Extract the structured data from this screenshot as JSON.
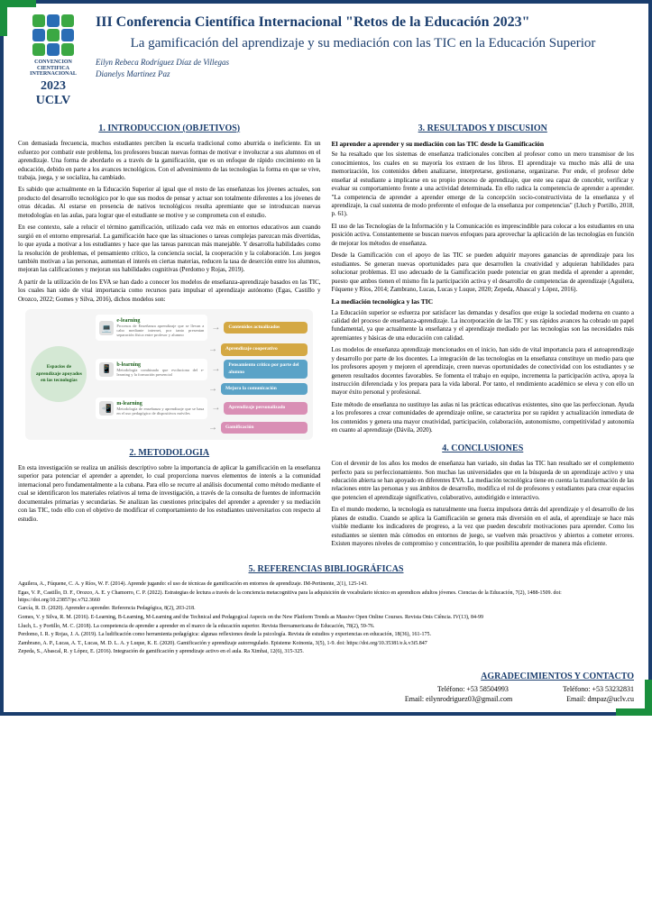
{
  "logo": {
    "line1": "CONVENCION",
    "line2": "CIENTIFICA",
    "line3": "INTERNACIONAL",
    "year": "2023",
    "uclv": "UCLV"
  },
  "conference_title": "III Conferencia Científica Internacional \"Retos de la Educación 2023\"",
  "main_title": "La gamificación del aprendizaje y su mediación con las TIC en la Educación Superior",
  "authors": {
    "a1": "Eilyn Rebeca Rodríguez Díaz de Villegas",
    "a2": "Dianelys Martinez Paz"
  },
  "sections": {
    "intro_title": "1. INTRODUCCION (OBJETIVOS)",
    "intro_p1": "Con demasiada frecuencia, muchos estudiantes perciben la escuela tradicional como aburrida o ineficiente. En un esfuerzo por combatir este problema, los profesores buscan nuevas formas de motivar e involucrar a sus alumnos en el aprendizaje. Una forma de abordarlo es a través de la gamificación, que es un enfoque de rápido crecimiento en la educación, debido en parte a los avances tecnológicos. Con el advenimiento de las tecnologías la forma en que se vive, trabaja, juega, y se socializa, ha cambiado.",
    "intro_p2": "Es sabido que actualmente en la Educación Superior al igual que el resto de las enseñanzas los jóvenes actuales, son producto del desarrollo tecnológico por lo que sus modos de pensar y actuar son totalmente diferentes a los jóvenes de otras décadas. Al estarse en presencia de nativos tecnológicos resulta apremiante que se introduzcan nuevas metodologías en las aulas, para lograr que el estudiante se motive y se comprometa con el estudio.",
    "intro_p3": "En ese contexto, sale a relucir el término gamificación, utilizado cada vez más en entornos educativos aun cuando surgió en el entorno empresarial. La gamificación hace que las situaciones o tareas complejas parezcan más divertidas, lo que ayuda a motivar a los estudiantes y hace que las tareas parezcan más manejable. Y desarrolla habilidades como la resolución de problemas, el pensamiento crítico, la conciencia social, la cooperación y la colaboración. Los juegos también motivan a las personas, aumentan el interés en ciertas materias, reducen la tasa de deserción entre los alumnos, mejoran las calificaciones y mejoran sus habilidades cognitivas (Perdomo y Rojas, 2019).",
    "intro_p4": "A partir de la utilización de los EVA se han dado a conocer los modelos de enseñanza-aprendizaje basados en las TIC, los cuales han sido de vital importancia como recursos para impulsar el aprendizaje autónomo (Egas, Castillo y Orozco, 2022; Gomes y Silva, 2016), dichos modelos son:",
    "method_title": "2. METODOLOGIA",
    "method_p1": "En esta investigación se realiza un análisis descriptivo sobre la importancia de aplicar la gamificación en la enseñanza superior para potenciar el aprender a aprender, lo cual proporciona nuevos elementos de interés a la comunidad internacional pero fundamentalmente a la cubana. Para ello se recurre al análisis documental como método mediante el cual se identificaron los materiales relativos al tema de investigación, a través de la consulta de fuentes de información documentales primarias y secundarias. Se analizan las cuestiones principales del aprender a aprender y su mediación con las TIC, todo ello con el objetivo de modificar el comportamiento de los estudiantes universitarios con respecto al estudio.",
    "results_title": "3. RESULTADOS Y DISCUSION",
    "results_sub1": "El aprender a aprender y su mediación con las TIC desde la Gamificación",
    "results_p1": "Se ha resaltado que los sistemas de enseñanza tradicionales conciben al profesor como un mero transmisor de los conocimientos, los cuales en su mayoría los extraen de los libros. El aprendizaje va mucho más allá de una memorización, los contenidos deben analizarse, interpretarse, gestionarse, organizarse. Por ende, el profesor debe enseñar al estudiante a implicarse en su propio proceso de aprendizaje, que este sea capaz de concebir, verificar y evaluar su comportamiento frente a una actividad determinada. En ello radica la competencia de aprender a aprender. \"La competencia de aprender a aprender emerge de la concepción socio-constructivista de la enseñanza y el aprendizaje, la cual sustenta de modo preferente el enfoque de la enseñanza por competencias\" (Lluch y Portillo, 2018, p. 61).",
    "results_p2": "El uso de las Tecnologías de la Información y la Comunicación es imprescindible para colocar a los estudiantes en una posición activa. Constantemente se buscan nuevos enfoques para aprovechar la aplicación de las tecnologías en función de mejorar los métodos de enseñanza.",
    "results_p3": "Desde la Gamificación con el apoyo de las TIC se pueden adquirir mayores ganancias de aprendizaje para los estudiantes. Se generan nuevas oportunidades para que desarrollen la creatividad y adquieran habilidades para solucionar problemas. El uso adecuado de la Gamificación puede potenciar en gran medida el aprender a aprender, puesto que ambos tienen el mismo fin la participación activa y el desarrollo de competencias de aprendizaje (Aguilera, Fúquene y Ríos, 2014; Zambrano, Lucas, Lucas y Luque, 2020; Zepeda, Abascal y López, 2016).",
    "results_sub2": "La mediación tecnológica y las TIC",
    "results_p4": "La Educación superior se esfuerza por satisfacer las demandas y desafíos que exige la sociedad moderna en cuanto a calidad del proceso de enseñanza-aprendizaje. La incorporación de las TIC y sus rápidos avances ha cobrado un papel fundamental, ya que actualmente la enseñanza y el aprendizaje mediado por las tecnologías son las necesidades más apremiantes y básicas de una educación con calidad.",
    "results_p5": "Los modelos de enseñanza aprendizaje mencionados en el inicio, han sido de vital importancia para el autoaprendizaje y desarrollo por parte de los docentes. La integración de las tecnologías en la enseñanza constituye un medio para que los profesores apoyen y mejoren el aprendizaje, creen nuevas oportunidades de conectividad con los estudiantes y se generen resultados docentes favorables. Se fomenta el trabajo en equipo, incrementa la participación activa, apoya la instrucción diferenciada y los prepara para la vida laboral. Por tanto, el rendimiento académico se eleva y con ello un mayor éxito personal y profesional.",
    "results_p6": "Este método de enseñanza no sustituye las aulas ni las prácticas educativas existentes, sino que las perfeccionan. Ayuda a los profesores a crear comunidades de aprendizaje online, se caracteriza por su rapidez y actualización inmediata de los contenidos y genera una mayor creatividad, participación, colaboración, autonomismo, competitividad y autonomía en cuanto al aprendizaje (Dávila, 2020).",
    "concl_title": "4. CONCLUSIONES",
    "concl_p1": "Con el devenir de los años los modos de enseñanza han variado, sin dudas las TIC han resultado ser el complemento perfecto para su perfeccionamiento. Son muchas las universidades que en la búsqueda de un aprendizaje activo y una educación abierta se han apoyado en diferentes EVA. La mediación tecnológica tiene en cuenta la transformación de las relaciones entre las personas y sus ámbitos de desarrollo, modifica el rol de profesores y estudiantes para crear espacios que potencien el aprendizaje significativo, colaborativo, autodirigido e interactivo.",
    "concl_p2": "En el mundo moderno, la tecnología es naturalmente una fuerza impulsora detrás del aprendizaje y el desarrollo de los planes de estudio. Cuando se aplica la Gamificación se genera más diversión en el aula, el aprendizaje se hace más visible mediante los indicadores de progreso, a la vez que pueden descubrir motivaciones para aprender. Como los estudiantes se sienten más cómodos en entornos de juego, se vuelven más proactivos y abiertos a cometer errores. Existen mayores niveles de compromiso y concentración, lo que posibilita aprender de manera más eficiente."
  },
  "diagram": {
    "center": "Espacios de aprendizaje apoyados en las tecnologías",
    "rows": [
      {
        "left_title": "e-learning",
        "left_desc": "Procesos de Enseñanza aprendizaje que se llevan a cabo mediante internet, por tanto presentan separación física entre profesor y alumno",
        "icon": "💻",
        "right": "Contenidos actualizados",
        "right_color": "#d4a843"
      },
      {
        "left_title": "",
        "left_desc": "",
        "icon": "",
        "right": "Aprendizaje cooperativo",
        "right_color": "#d4a843"
      },
      {
        "left_title": "b-learning",
        "left_desc": "Metodología combinado que evoluciona del e-learning y la formación presencial",
        "icon": "📱",
        "right": "Pensamiento crítico por parte del alumno",
        "right_color": "#5ba3c7"
      },
      {
        "left_title": "",
        "left_desc": "",
        "icon": "",
        "right": "Mejora la comunicación",
        "right_color": "#5ba3c7"
      },
      {
        "left_title": "m-learning",
        "left_desc": "Metodología de enseñanza y aprendizaje que se basa en el uso pedagógico de dispositivos móviles",
        "icon": "📲",
        "right": "Aprendizaje personalizado",
        "right_color": "#d98fb5"
      },
      {
        "left_title": "",
        "left_desc": "",
        "icon": "",
        "right": "Gamificación",
        "right_color": "#d98fb5"
      }
    ]
  },
  "refs_title": "5. REFERENCIAS BIBLIOGRÁFICAS",
  "refs": [
    "Aguilera, A., Fúquene, C. A. y Ríos, W. F. (2014). Aprende jugando: el uso de técnicas de gamificación en entornos de aprendizaje. IM-Pertinente, 2(1), 125-143.",
    "Egas, V. P., Castillo, D. F., Orozco, A. E. y Chamorro, C. P. (2022). Estrategias de lectura a través de la conciencia metacognitiva para la adquisición de vocabulario técnico en aprendices adultos jóvenes. Ciencias de la Educación, 7(2), 1488-1509. doi: https://doi.org/10.23857/pc.v7i2.3660",
    "García, R. D. (2020). Aprender a aprender. Referencia Pedagógica, 8(2), 203-218.",
    "Gomes, V. y Silva, R. M. (2016). E-Learning, B-Learning, M-Learning and the Technical and Pedagogical Aspects on the New Platform Trends as Massive Open Online Courses. Revista Onis Ciência. IV(13), 84-99",
    "Lluch, L. y Portillo, M. C. (2018). La competencia de aprender a aprender en el marco de la educación superior. Revista Iberoamericana de Educación, 78(2), 59-76.",
    "Perdomo, I. R. y Rojas, J. A. (2019). La ludificación como herramienta pedagógica: algunas reflexiones desde la psicología. Revista de estudios y experiencias en educación, 18(36), 161-175.",
    "Zambrano, A. P., Lucas, A. T., Lucas, M. D. L. A. y Luque, K. E. (2020). Gamificación y aprendizaje autorregulado. Episteme Koinonia, 3(5), 1-9. doi: https://doi.org/10.35381/e.k.v3i5.847",
    "Zepeda, S., Abascal, R. y López, E. (2016). Integración de gamificación y aprendizaje activo en el aula. Ra Ximhai, 12(6), 315-325."
  ],
  "contact_title": "AGRADECIMIENTOS Y CONTACTO",
  "contact": {
    "tel1": "Teléfono: +53 58504993",
    "tel2": "Teléfono: +53 53232831",
    "email1": "Email: eilynrodriguez03@gmail.com",
    "email2": "Email: dmpaz@uclv.cu"
  }
}
